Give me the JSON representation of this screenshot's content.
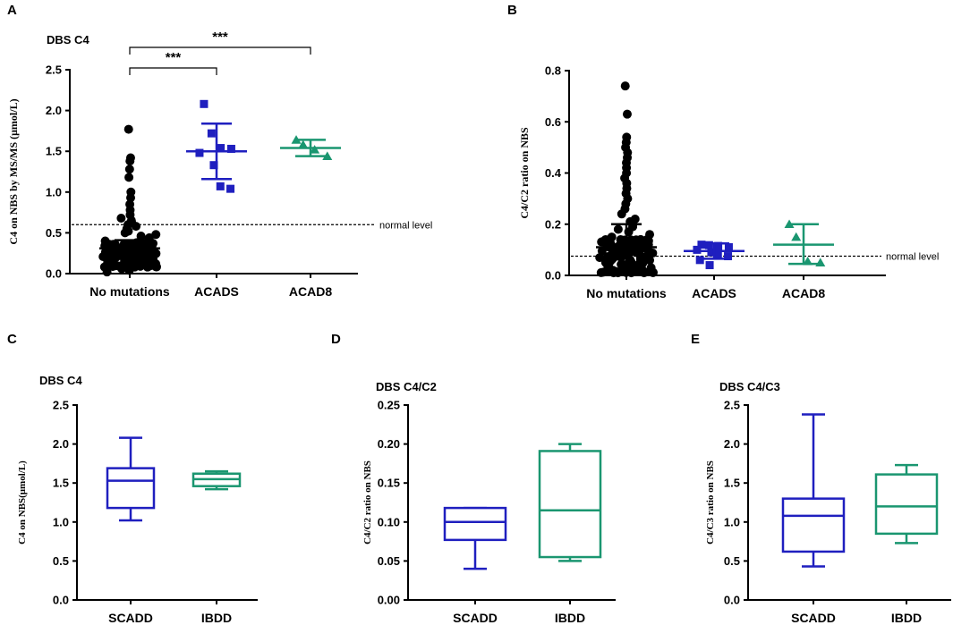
{
  "colors": {
    "no_mutations": "#000000",
    "acads": "#1f1fbf",
    "acad8": "#1a9670",
    "scadd": "#1f1fbf",
    "ibdd": "#1a9670"
  },
  "panels": [
    {
      "id": "A",
      "label": "A",
      "type": "scatter",
      "title": "DBS C4",
      "ylabel": "C4 on NBS by MS/MS (μmol/L)",
      "ylim": [
        0,
        2.5
      ],
      "yticks": [
        "0.0",
        "0.5",
        "1.0",
        "1.5",
        "2.0",
        "2.5"
      ],
      "categories": [
        "No mutations",
        "ACADS",
        "ACAD8"
      ],
      "reference_line": {
        "value": 0.6,
        "label": "normal level"
      },
      "groups": [
        {
          "name": "No mutations",
          "color_key": "no_mutations",
          "marker": "circle",
          "mean": 0.31,
          "sd_low": 0.21,
          "sd_high": 0.41,
          "points": [
            1.77,
            1.42,
            1.38,
            1.28,
            1.18,
            1.0,
            0.93,
            0.85,
            0.78,
            0.72,
            0.68,
            0.65,
            0.62,
            0.6,
            0.58,
            0.55,
            0.52,
            0.5,
            0.48,
            0.46,
            0.44,
            0.42,
            0.4,
            0.38,
            0.37,
            0.36,
            0.35,
            0.34,
            0.33,
            0.32,
            0.31,
            0.3,
            0.29,
            0.28,
            0.27,
            0.26,
            0.25,
            0.24,
            0.23,
            0.22,
            0.21,
            0.2,
            0.19,
            0.18,
            0.17,
            0.16,
            0.15,
            0.14,
            0.13,
            0.12,
            0.1,
            0.08,
            0.06,
            0.04,
            0.02
          ]
        },
        {
          "name": "ACADS",
          "color_key": "acads",
          "marker": "square",
          "mean": 1.5,
          "sd_low": 1.16,
          "sd_high": 1.84,
          "points": [
            2.08,
            1.72,
            1.54,
            1.53,
            1.48,
            1.33,
            1.07,
            1.04
          ]
        },
        {
          "name": "ACAD8",
          "color_key": "acad8",
          "marker": "triangle",
          "mean": 1.54,
          "sd_low": 1.44,
          "sd_high": 1.64,
          "points": [
            1.64,
            1.58,
            1.52,
            1.44
          ]
        }
      ],
      "significance": [
        {
          "from": "No mutations",
          "to": "ACADS",
          "label": "***"
        },
        {
          "from": "No mutations",
          "to": "ACAD8",
          "label": "***"
        }
      ]
    },
    {
      "id": "B",
      "label": "B",
      "type": "scatter",
      "title": "",
      "ylabel": "C4/C2 ratio on NBS",
      "ylim": [
        0,
        0.8
      ],
      "yticks": [
        "0.0",
        "0.2",
        "0.4",
        "0.6",
        "0.8"
      ],
      "categories": [
        "No mutations",
        "ACADS",
        "ACAD8"
      ],
      "reference_line": {
        "value": 0.075,
        "label": "normal level"
      },
      "groups": [
        {
          "name": "No mutations",
          "color_key": "no_mutations",
          "marker": "circle",
          "mean": 0.11,
          "sd_low": 0.02,
          "sd_high": 0.2,
          "points": [
            0.74,
            0.63,
            0.54,
            0.52,
            0.5,
            0.48,
            0.46,
            0.44,
            0.42,
            0.4,
            0.38,
            0.36,
            0.34,
            0.32,
            0.3,
            0.28,
            0.26,
            0.24,
            0.22,
            0.21,
            0.2,
            0.19,
            0.18,
            0.17,
            0.16,
            0.15,
            0.14,
            0.13,
            0.12,
            0.11,
            0.1,
            0.09,
            0.08,
            0.07,
            0.06,
            0.05,
            0.04,
            0.03,
            0.02,
            0.01
          ]
        },
        {
          "name": "ACADS",
          "color_key": "acads",
          "marker": "square",
          "mean": 0.095,
          "sd_low": 0.065,
          "sd_high": 0.125,
          "points": [
            0.12,
            0.118,
            0.115,
            0.11,
            0.1,
            0.09,
            0.08,
            0.075,
            0.06,
            0.04
          ]
        },
        {
          "name": "ACAD8",
          "color_key": "acad8",
          "marker": "triangle",
          "mean": 0.12,
          "sd_low": 0.045,
          "sd_high": 0.2,
          "points": [
            0.2,
            0.15,
            0.055,
            0.05
          ]
        }
      ]
    },
    {
      "id": "C",
      "label": "C",
      "type": "box",
      "title": "DBS C4",
      "ylabel": "C4 on NBS(μmol/L)",
      "ylim": [
        0,
        2.5
      ],
      "yticks": [
        "0.0",
        "0.5",
        "1.0",
        "1.5",
        "2.0",
        "2.5"
      ],
      "categories": [
        "SCADD",
        "IBDD"
      ],
      "boxes": [
        {
          "name": "SCADD",
          "color_key": "scadd",
          "min": 1.02,
          "q1": 1.18,
          "median": 1.53,
          "q3": 1.69,
          "max": 2.08
        },
        {
          "name": "IBDD",
          "color_key": "ibdd",
          "min": 1.42,
          "q1": 1.46,
          "median": 1.55,
          "q3": 1.62,
          "max": 1.65
        }
      ]
    },
    {
      "id": "D",
      "label": "D",
      "type": "box",
      "title": "DBS C4/C2",
      "ylabel": "C4/C2 ratio on NBS",
      "ylim": [
        0,
        0.25
      ],
      "yticks": [
        "0.00",
        "0.05",
        "0.10",
        "0.15",
        "0.20",
        "0.25"
      ],
      "categories": [
        "SCADD",
        "IBDD"
      ],
      "boxes": [
        {
          "name": "SCADD",
          "color_key": "scadd",
          "min": 0.04,
          "q1": 0.077,
          "median": 0.1,
          "q3": 0.118,
          "max": 0.118
        },
        {
          "name": "IBDD",
          "color_key": "ibdd",
          "min": 0.05,
          "q1": 0.055,
          "median": 0.115,
          "q3": 0.191,
          "max": 0.2
        }
      ]
    },
    {
      "id": "E",
      "label": "E",
      "type": "box",
      "title": "DBS C4/C3",
      "ylabel": "C4/C3 ratio on NBS",
      "ylim": [
        0,
        2.5
      ],
      "yticks": [
        "0.0",
        "0.5",
        "1.0",
        "1.5",
        "2.0",
        "2.5"
      ],
      "categories": [
        "SCADD",
        "IBDD"
      ],
      "boxes": [
        {
          "name": "SCADD",
          "color_key": "scadd",
          "min": 0.43,
          "q1": 0.62,
          "median": 1.08,
          "q3": 1.3,
          "max": 2.38
        },
        {
          "name": "IBDD",
          "color_key": "ibdd",
          "min": 0.73,
          "q1": 0.85,
          "median": 1.2,
          "q3": 1.61,
          "max": 1.73
        }
      ]
    }
  ]
}
